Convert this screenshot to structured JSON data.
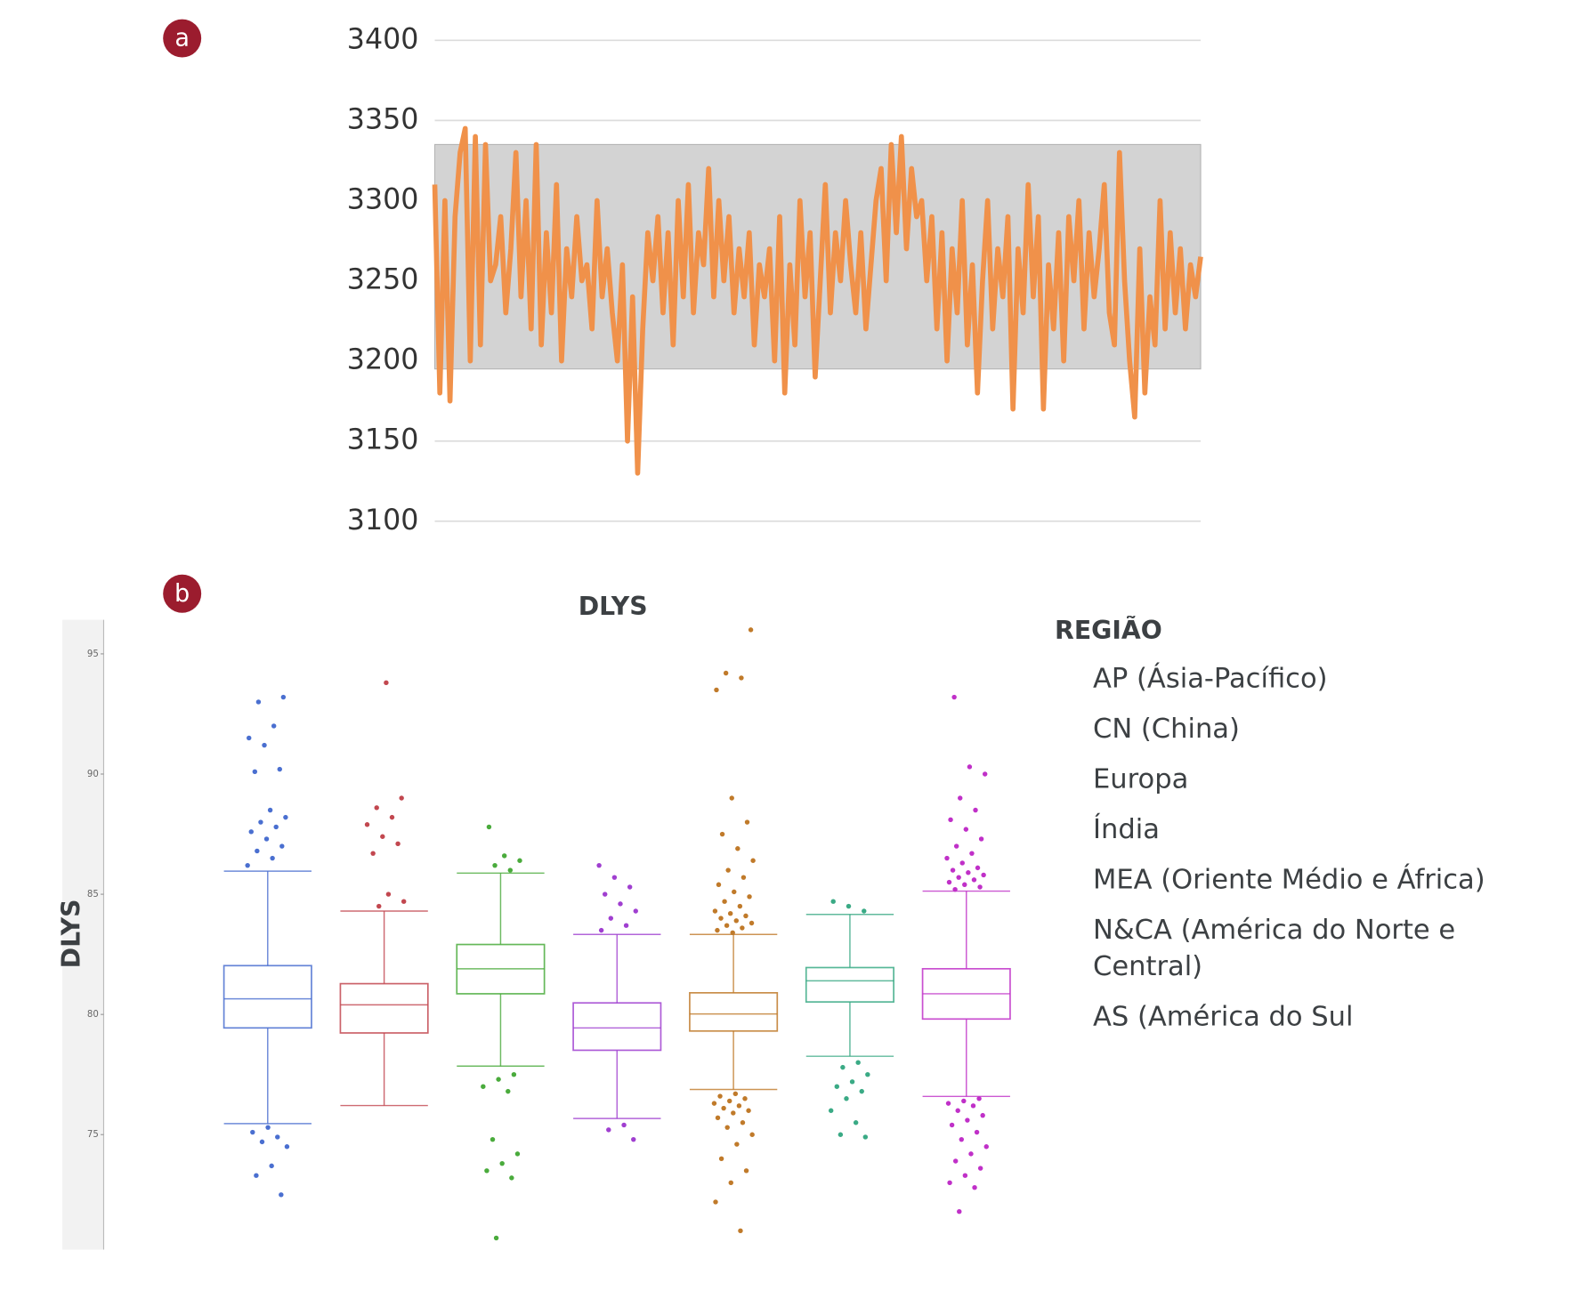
{
  "panel_labels": [
    "a",
    "b"
  ],
  "chart_data": [
    {
      "type": "line",
      "color": "#f0914a",
      "band": [
        3195,
        3335
      ],
      "band_color": "#d3d3d3",
      "ylim": [
        3100,
        3400
      ],
      "yticks": [
        3100,
        3150,
        3200,
        3250,
        3300,
        3350,
        3400
      ],
      "grid": true,
      "values": [
        3310,
        3180,
        3300,
        3175,
        3290,
        3330,
        3345,
        3200,
        3340,
        3210,
        3335,
        3250,
        3260,
        3290,
        3230,
        3270,
        3330,
        3240,
        3300,
        3220,
        3335,
        3210,
        3280,
        3230,
        3310,
        3200,
        3270,
        3240,
        3290,
        3250,
        3260,
        3220,
        3300,
        3240,
        3270,
        3230,
        3200,
        3260,
        3150,
        3240,
        3130,
        3220,
        3280,
        3250,
        3290,
        3230,
        3280,
        3210,
        3300,
        3240,
        3310,
        3230,
        3280,
        3260,
        3320,
        3240,
        3300,
        3250,
        3290,
        3230,
        3270,
        3240,
        3280,
        3210,
        3260,
        3240,
        3270,
        3200,
        3290,
        3180,
        3260,
        3210,
        3300,
        3240,
        3280,
        3190,
        3250,
        3310,
        3230,
        3280,
        3250,
        3300,
        3260,
        3230,
        3280,
        3220,
        3260,
        3300,
        3320,
        3250,
        3335,
        3280,
        3340,
        3270,
        3320,
        3290,
        3300,
        3250,
        3290,
        3220,
        3280,
        3200,
        3270,
        3230,
        3300,
        3210,
        3260,
        3180,
        3250,
        3300,
        3220,
        3270,
        3240,
        3290,
        3170,
        3270,
        3230,
        3310,
        3240,
        3290,
        3170,
        3260,
        3220,
        3280,
        3200,
        3290,
        3250,
        3300,
        3220,
        3280,
        3240,
        3270,
        3310,
        3230,
        3210,
        3330,
        3250,
        3200,
        3165,
        3270,
        3180,
        3240,
        3210,
        3300,
        3220,
        3280,
        3230,
        3270,
        3220,
        3260,
        3240,
        3265
      ]
    },
    {
      "type": "box",
      "title": "DLYS",
      "ylabel": "DLYS",
      "legend_title": "REGIÃO",
      "ylim": [
        70.3,
        96.5
      ],
      "yticks": [
        75,
        80,
        85,
        90,
        95
      ],
      "series": [
        {
          "name": "AP (Ásia-Pacífico)",
          "color": "#4a6fd0",
          "whislo": 75.46,
          "q1": 79.44,
          "median": 80.65,
          "q3": 82.03,
          "whishi": 85.96,
          "outliers": [
            86.2,
            86.5,
            86.8,
            87,
            87.3,
            87.6,
            87.8,
            88,
            88.2,
            88.5,
            90.1,
            90.2,
            91.2,
            91.5,
            92,
            93,
            93.2,
            75.3,
            75.1,
            74.9,
            74.7,
            74.5,
            73.7,
            73.3,
            72.5
          ]
        },
        {
          "name": "CN (China)",
          "color": "#c2474f",
          "whislo": 76.21,
          "q1": 79.23,
          "median": 80.4,
          "q3": 81.28,
          "whishi": 84.3,
          "outliers": [
            84.5,
            84.7,
            85,
            86.7,
            87.1,
            87.4,
            87.9,
            88.2,
            88.6,
            89,
            93.8
          ]
        },
        {
          "name": "Europa",
          "color": "#4aab3c",
          "whislo": 77.85,
          "q1": 80.86,
          "median": 81.9,
          "q3": 82.91,
          "whishi": 85.88,
          "outliers": [
            86,
            86.2,
            86.4,
            86.6,
            87.8,
            77.5,
            77.3,
            77,
            76.8,
            74.8,
            74.2,
            73.8,
            73.5,
            73.2,
            70.7
          ]
        },
        {
          "name": "Índia",
          "color": "#a03fd0",
          "whislo": 75.67,
          "q1": 78.51,
          "median": 79.44,
          "q3": 80.48,
          "whishi": 83.33,
          "outliers": [
            83.5,
            83.7,
            84,
            84.3,
            84.6,
            85,
            85.3,
            85.7,
            86.2,
            75.4,
            75.2,
            74.8
          ]
        },
        {
          "name": "MEA (Oriente Médio e África)",
          "color": "#c07a2a",
          "whislo": 76.88,
          "q1": 79.31,
          "median": 80.02,
          "q3": 80.9,
          "whishi": 83.33,
          "outliers": [
            83.4,
            83.5,
            83.6,
            83.7,
            83.8,
            83.9,
            84,
            84.1,
            84.2,
            84.3,
            84.5,
            84.7,
            84.9,
            85.1,
            85.4,
            85.7,
            86,
            86.4,
            86.9,
            87.5,
            88,
            89,
            93.5,
            94,
            94.2,
            96,
            76.7,
            76.6,
            76.5,
            76.4,
            76.3,
            76.2,
            76.1,
            76,
            75.9,
            75.7,
            75.5,
            75.3,
            75,
            74.6,
            74,
            73.5,
            73,
            72.2,
            71
          ]
        },
        {
          "name": "N&CA (América do Norte e Central)",
          "color": "#3aaa85",
          "whislo": 78.26,
          "q1": 80.52,
          "median": 81.4,
          "q3": 81.95,
          "whishi": 84.16,
          "outliers": [
            84.3,
            84.5,
            84.7,
            78,
            77.8,
            77.5,
            77.2,
            77,
            76.8,
            76.5,
            76,
            75.5,
            75,
            74.9
          ]
        },
        {
          "name": "AS (América do Sul",
          "color": "#c030c8",
          "whislo": 76.59,
          "q1": 79.81,
          "median": 80.86,
          "q3": 81.9,
          "whishi": 85.13,
          "outliers": [
            85.2,
            85.3,
            85.4,
            85.5,
            85.6,
            85.7,
            85.8,
            85.9,
            86,
            86.1,
            86.3,
            86.5,
            86.7,
            87,
            87.3,
            87.7,
            88.1,
            88.5,
            89,
            90,
            90.3,
            93.2,
            76.5,
            76.4,
            76.3,
            76.2,
            76,
            75.8,
            75.6,
            75.4,
            75.1,
            74.8,
            74.5,
            74.2,
            73.9,
            73.6,
            73.3,
            73,
            72.8,
            71.8
          ]
        }
      ]
    }
  ]
}
